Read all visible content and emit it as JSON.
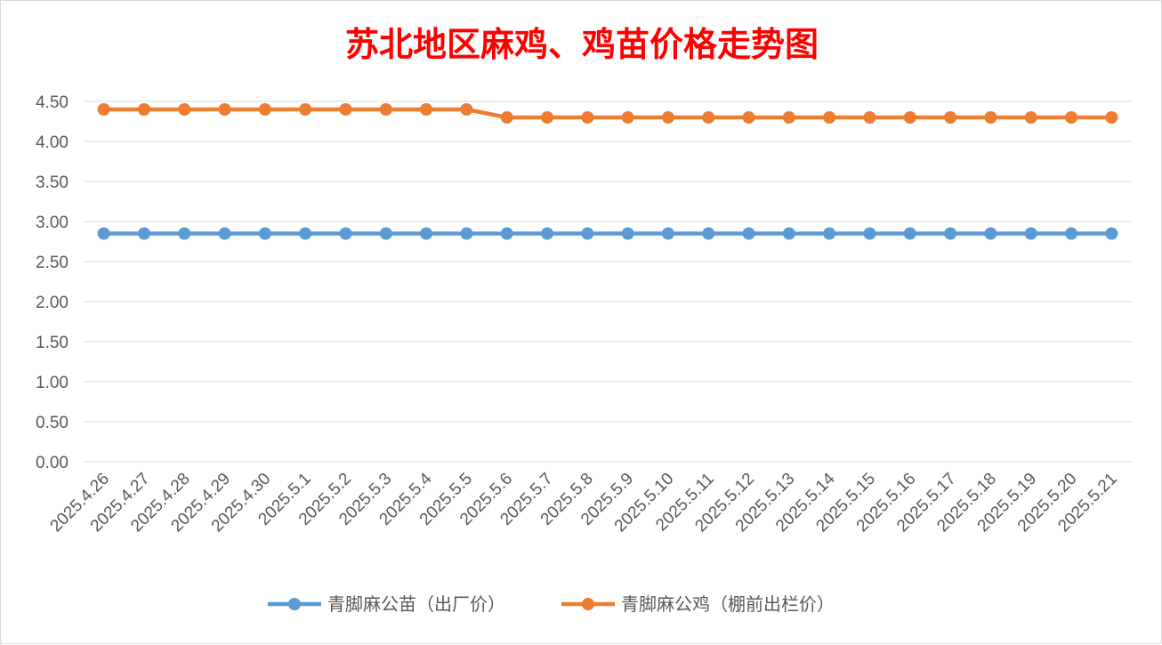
{
  "chart_data": {
    "type": "line",
    "title": "苏北地区麻鸡、鸡苗价格走势图",
    "title_color": "#ff0000",
    "xlabel": "",
    "ylabel": "",
    "ylim": [
      0,
      4.5
    ],
    "y_ticks": [
      "0.00",
      "0.50",
      "1.00",
      "1.50",
      "2.00",
      "2.50",
      "3.00",
      "3.50",
      "4.00",
      "4.50"
    ],
    "grid": true,
    "legend_position": "bottom",
    "categories": [
      "2025.4.26",
      "2025.4.27",
      "2025.4.28",
      "2025.4.29",
      "2025.4.30",
      "2025.5.1",
      "2025.5.2",
      "2025.5.3",
      "2025.5.4",
      "2025.5.5",
      "2025.5.6",
      "2025.5.7",
      "2025.5.8",
      "2025.5.9",
      "2025.5.10",
      "2025.5.11",
      "2025.5.12",
      "2025.5.13",
      "2025.5.14",
      "2025.5.15",
      "2025.5.16",
      "2025.5.17",
      "2025.5.18",
      "2025.5.19",
      "2025.5.20",
      "2025.5.21"
    ],
    "series": [
      {
        "name": "青脚麻公苗（出厂价）",
        "color": "#5b9bd5",
        "values": [
          2.85,
          2.85,
          2.85,
          2.85,
          2.85,
          2.85,
          2.85,
          2.85,
          2.85,
          2.85,
          2.85,
          2.85,
          2.85,
          2.85,
          2.85,
          2.85,
          2.85,
          2.85,
          2.85,
          2.85,
          2.85,
          2.85,
          2.85,
          2.85,
          2.85,
          2.85
        ]
      },
      {
        "name": "青脚麻公鸡（棚前出栏价）",
        "color": "#ed7d31",
        "values": [
          4.4,
          4.4,
          4.4,
          4.4,
          4.4,
          4.4,
          4.4,
          4.4,
          4.4,
          4.4,
          4.3,
          4.3,
          4.3,
          4.3,
          4.3,
          4.3,
          4.3,
          4.3,
          4.3,
          4.3,
          4.3,
          4.3,
          4.3,
          4.3,
          4.3,
          4.3
        ]
      }
    ]
  }
}
